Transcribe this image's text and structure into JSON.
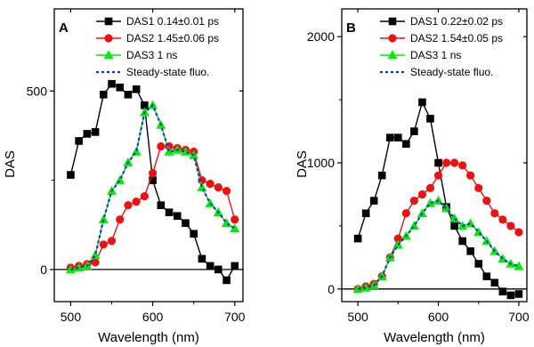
{
  "chart_data": [
    {
      "type": "line",
      "panel_label": "A",
      "xlabel": "Wavelength (nm)",
      "ylabel": "DAS",
      "xlim": [
        480,
        710
      ],
      "ylim": [
        -90,
        730
      ],
      "xticks": [
        500,
        600,
        700
      ],
      "yticks": [
        0,
        500
      ],
      "zero_line": true,
      "legend_position": "top-right",
      "series": [
        {
          "name": "DAS1 0.14±0.01 ps",
          "color": "#000000",
          "marker": "square",
          "x": [
            500,
            510,
            520,
            530,
            540,
            550,
            560,
            570,
            580,
            590,
            600,
            610,
            620,
            630,
            640,
            650,
            660,
            670,
            680,
            690,
            700
          ],
          "y": [
            265,
            360,
            380,
            385,
            490,
            520,
            510,
            490,
            505,
            460,
            250,
            180,
            160,
            150,
            130,
            100,
            30,
            10,
            0,
            -30,
            10
          ]
        },
        {
          "name": "DAS2 1.45±0.06 ps",
          "color": "#ee1111",
          "marker": "circle",
          "x": [
            500,
            510,
            520,
            530,
            540,
            550,
            560,
            570,
            580,
            590,
            600,
            610,
            620,
            630,
            640,
            650,
            660,
            670,
            680,
            690,
            700
          ],
          "y": [
            5,
            10,
            15,
            20,
            70,
            80,
            140,
            180,
            190,
            205,
            270,
            345,
            345,
            340,
            335,
            330,
            250,
            240,
            230,
            220,
            140
          ]
        },
        {
          "name": "DAS3 1 ns",
          "color": "#00ee00",
          "marker": "triangle",
          "x": [
            500,
            510,
            520,
            530,
            540,
            550,
            560,
            570,
            580,
            590,
            600,
            610,
            620,
            630,
            640,
            650,
            660,
            670,
            680,
            690,
            700
          ],
          "y": [
            0,
            5,
            10,
            40,
            140,
            220,
            250,
            300,
            330,
            440,
            460,
            405,
            330,
            335,
            330,
            320,
            230,
            185,
            160,
            130,
            115
          ]
        },
        {
          "name": "Steady-state fluo.",
          "color": "#1a2bd8",
          "marker": "none",
          "dashed": true,
          "x": [
            500,
            510,
            520,
            530,
            540,
            550,
            560,
            570,
            580,
            590,
            600,
            610,
            620,
            630,
            640,
            650,
            660,
            670,
            680,
            690,
            700
          ],
          "y": [
            0,
            5,
            10,
            40,
            140,
            220,
            250,
            300,
            330,
            440,
            460,
            405,
            330,
            335,
            330,
            320,
            230,
            185,
            160,
            130,
            115
          ]
        }
      ]
    },
    {
      "type": "line",
      "panel_label": "B",
      "xlabel": "Wavelength (nm)",
      "ylabel": "DAS",
      "xlim": [
        480,
        710
      ],
      "ylim": [
        -100,
        2220
      ],
      "xticks": [
        500,
        600,
        700
      ],
      "yticks": [
        0,
        1000,
        2000
      ],
      "zero_line": true,
      "legend_position": "top-right",
      "series": [
        {
          "name": "DAS1 0.22±0.02 ps",
          "color": "#000000",
          "marker": "square",
          "x": [
            500,
            510,
            520,
            530,
            540,
            550,
            560,
            570,
            580,
            590,
            600,
            610,
            620,
            630,
            640,
            650,
            660,
            670,
            680,
            690,
            700
          ],
          "y": [
            400,
            600,
            700,
            900,
            1200,
            1200,
            1150,
            1250,
            1480,
            1350,
            1000,
            650,
            500,
            380,
            300,
            200,
            100,
            50,
            -20,
            -50,
            -40
          ]
        },
        {
          "name": "DAS2 1.54±0.05 ps",
          "color": "#ee1111",
          "marker": "circle",
          "x": [
            500,
            510,
            520,
            530,
            540,
            550,
            560,
            570,
            580,
            590,
            600,
            610,
            620,
            630,
            640,
            650,
            660,
            670,
            680,
            690,
            700
          ],
          "y": [
            0,
            20,
            40,
            100,
            250,
            400,
            600,
            700,
            750,
            800,
            900,
            1000,
            1000,
            980,
            900,
            800,
            700,
            600,
            550,
            500,
            450
          ]
        },
        {
          "name": "DAS3 1 ns",
          "color": "#00ee00",
          "marker": "triangle",
          "x": [
            500,
            510,
            520,
            530,
            540,
            550,
            560,
            570,
            580,
            590,
            600,
            610,
            620,
            630,
            640,
            650,
            660,
            670,
            680,
            690,
            700
          ],
          "y": [
            0,
            10,
            30,
            100,
            250,
            350,
            420,
            500,
            600,
            680,
            700,
            640,
            560,
            500,
            520,
            450,
            380,
            300,
            240,
            200,
            180
          ]
        },
        {
          "name": "Steady-state fluo.",
          "color": "#1a2bd8",
          "marker": "none",
          "dashed": true,
          "x": [
            500,
            510,
            520,
            530,
            540,
            550,
            560,
            570,
            580,
            590,
            600,
            610,
            620,
            630,
            640,
            650,
            660,
            670,
            680,
            690,
            700
          ],
          "y": [
            0,
            10,
            30,
            100,
            250,
            350,
            420,
            500,
            600,
            680,
            700,
            640,
            560,
            500,
            520,
            450,
            380,
            300,
            240,
            200,
            180
          ]
        }
      ]
    }
  ]
}
